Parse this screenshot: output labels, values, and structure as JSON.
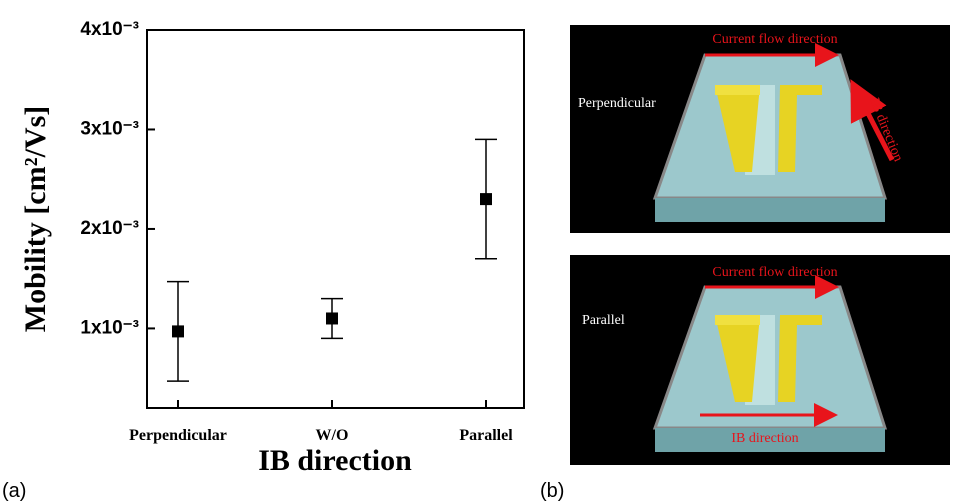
{
  "chart_data": {
    "type": "errorbar",
    "xlabel": "IB direction",
    "ylabel": "Mobility [cm²/Vs]",
    "categories": [
      "Perpendicular",
      "W/O",
      "Parallel"
    ],
    "values": [
      0.00097,
      0.0011,
      0.0023
    ],
    "errors": [
      0.0005,
      0.0002,
      0.0006
    ],
    "color": "#000000",
    "ylim": [
      0.0002,
      0.004
    ],
    "yticks": [
      {
        "value": 0.001,
        "label": "1x10⁻³"
      },
      {
        "value": 0.002,
        "label": "2x10⁻³"
      },
      {
        "value": 0.003,
        "label": "3x10⁻³"
      },
      {
        "value": 0.004,
        "label": "4x10⁻³"
      }
    ]
  },
  "panel_labels": [
    "(a)",
    "(b)"
  ],
  "diagram": {
    "panels": [
      {
        "orientation": "Perpendicular",
        "current": "Current flow direction",
        "ib": "IB direction"
      },
      {
        "orientation": "Parallel",
        "current": "Current flow direction",
        "ib": "IB direction"
      }
    ]
  }
}
